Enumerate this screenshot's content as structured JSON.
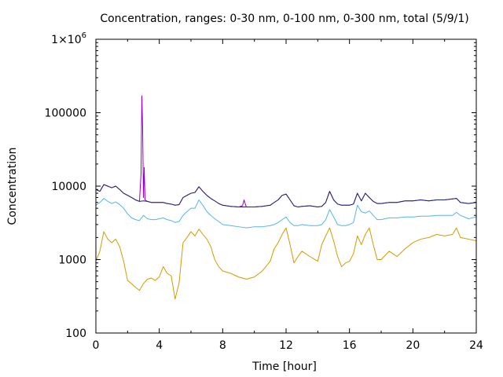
{
  "chart_data": {
    "type": "line",
    "title": "Concentration, ranges: 0-30 nm, 0-100 nm, 0-300 nm, total (5/9/1)",
    "xlabel": "Time [hour]",
    "ylabel": "Concentration",
    "xlim": [
      0,
      24
    ],
    "ylim": [
      100,
      1000000
    ],
    "yscale": "log",
    "grid": false,
    "x_ticks": [
      0,
      4,
      8,
      12,
      16,
      20,
      24
    ],
    "x_tick_labels": [
      "0",
      "4",
      "8",
      "12",
      "16",
      "20",
      "24"
    ],
    "y_ticks": [
      100,
      1000,
      10000,
      100000,
      1000000
    ],
    "y_tick_labels": [
      "100",
      "1000",
      "10000",
      "100000",
      "1×10^6"
    ],
    "series": [
      {
        "color": "#d49a00",
        "x": [
          0,
          0.25,
          0.5,
          0.75,
          1,
          1.25,
          1.5,
          1.75,
          2,
          2.25,
          2.5,
          2.75,
          3,
          3.25,
          3.5,
          3.75,
          4,
          4.25,
          4.5,
          4.75,
          5,
          5.25,
          5.5,
          5.75,
          6,
          6.25,
          6.5,
          6.75,
          7,
          7.25,
          7.5,
          7.75,
          8,
          8.5,
          9,
          9.5,
          10,
          10.5,
          11,
          11.25,
          11.5,
          11.75,
          12,
          12.25,
          12.5,
          12.75,
          13,
          13.5,
          14,
          14.25,
          14.5,
          14.75,
          15,
          15.25,
          15.5,
          15.75,
          16,
          16.25,
          16.5,
          16.75,
          17,
          17.25,
          17.5,
          17.75,
          18,
          18.5,
          19,
          19.5,
          20,
          20.5,
          21,
          21.5,
          22,
          22.5,
          22.75,
          23,
          23.5,
          24
        ],
        "y": [
          950,
          1300,
          2400,
          1900,
          1700,
          1900,
          1500,
          950,
          520,
          470,
          420,
          380,
          470,
          540,
          560,
          520,
          580,
          800,
          650,
          600,
          290,
          480,
          1700,
          2000,
          2400,
          2100,
          2600,
          2200,
          1900,
          1500,
          1000,
          800,
          700,
          650,
          580,
          540,
          580,
          700,
          950,
          1400,
          1700,
          2200,
          2700,
          1600,
          900,
          1100,
          1300,
          1100,
          950,
          1600,
          2100,
          2700,
          1800,
          1100,
          800,
          900,
          950,
          1200,
          2100,
          1600,
          2200,
          2700,
          1600,
          1000,
          1000,
          1300,
          1100,
          1400,
          1700,
          1900,
          2000,
          2200,
          2100,
          2200,
          2700,
          2000,
          1900,
          1800
        ]
      },
      {
        "color": "#56b4e9",
        "x": [
          0,
          0.25,
          0.5,
          0.75,
          1,
          1.25,
          1.5,
          1.75,
          2,
          2.25,
          2.5,
          2.75,
          3,
          3.25,
          3.5,
          3.75,
          4,
          4.25,
          4.5,
          4.75,
          5,
          5.25,
          5.5,
          5.75,
          6,
          6.25,
          6.5,
          6.75,
          7,
          7.25,
          7.5,
          7.75,
          8,
          8.5,
          9,
          9.5,
          10,
          10.5,
          11,
          11.25,
          11.5,
          11.75,
          12,
          12.25,
          12.5,
          12.75,
          13,
          13.5,
          14,
          14.25,
          14.5,
          14.75,
          15,
          15.25,
          15.5,
          15.75,
          16,
          16.25,
          16.5,
          16.75,
          17,
          17.25,
          17.5,
          17.75,
          18,
          18.5,
          19,
          19.5,
          20,
          20.5,
          21,
          21.5,
          22,
          22.5,
          22.75,
          23,
          23.5,
          24
        ],
        "y": [
          5500,
          6000,
          6800,
          6200,
          5800,
          6100,
          5600,
          5000,
          4200,
          3700,
          3500,
          3400,
          4000,
          3600,
          3500,
          3500,
          3600,
          3700,
          3500,
          3400,
          3200,
          3300,
          4000,
          4500,
          5000,
          5000,
          6500,
          5500,
          4500,
          4000,
          3600,
          3300,
          3000,
          2900,
          2800,
          2700,
          2800,
          2800,
          2900,
          3000,
          3200,
          3500,
          3800,
          3200,
          2900,
          2900,
          3000,
          2900,
          2900,
          3000,
          3500,
          4800,
          3800,
          3000,
          2900,
          2900,
          3000,
          3200,
          5500,
          4500,
          4300,
          4600,
          4000,
          3500,
          3500,
          3700,
          3700,
          3800,
          3800,
          3900,
          3900,
          4000,
          4000,
          4000,
          4400,
          4000,
          3600,
          3800
        ]
      },
      {
        "color": "#9400d3",
        "x": [
          0,
          0.25,
          0.5,
          0.75,
          1,
          1.25,
          1.5,
          1.75,
          2,
          2.25,
          2.5,
          2.75,
          2.85,
          2.9,
          2.95,
          3,
          3.05,
          3.1,
          3.25,
          3.5,
          3.75,
          4,
          4.25,
          4.5,
          4.75,
          5,
          5.25,
          5.5,
          5.75,
          6,
          6.25,
          6.5,
          6.75,
          7,
          7.25,
          7.5,
          7.75,
          8,
          8.5,
          9,
          9.25,
          9.35,
          9.45,
          9.5,
          10,
          10.5,
          11,
          11.25,
          11.5,
          11.75,
          12,
          12.25,
          12.5,
          12.75,
          13,
          13.5,
          14,
          14.25,
          14.5,
          14.75,
          15,
          15.25,
          15.5,
          15.75,
          16,
          16.25,
          16.5,
          16.75,
          17,
          17.25,
          17.5,
          17.75,
          18,
          18.5,
          19,
          19.5,
          20,
          20.5,
          21,
          21.5,
          22,
          22.5,
          22.75,
          23,
          23.5,
          24
        ],
        "y": [
          9000,
          8500,
          10500,
          10000,
          9500,
          10000,
          9000,
          8000,
          7500,
          7000,
          6500,
          6200,
          15000,
          170000,
          60000,
          7000,
          18000,
          6500,
          6200,
          6000,
          6000,
          6000,
          6000,
          5800,
          5700,
          5500,
          5600,
          7000,
          7500,
          8000,
          8200,
          9800,
          8500,
          7500,
          6800,
          6300,
          5800,
          5500,
          5300,
          5200,
          5400,
          6500,
          5500,
          5200,
          5200,
          5300,
          5500,
          6000,
          6500,
          7500,
          7800,
          6500,
          5400,
          5200,
          5300,
          5400,
          5200,
          5300,
          6000,
          8500,
          6500,
          5700,
          5500,
          5500,
          5500,
          5700,
          8000,
          6300,
          8000,
          7000,
          6200,
          5800,
          5800,
          6000,
          6000,
          6300,
          6300,
          6500,
          6300,
          6500,
          6500,
          6700,
          6800,
          6000,
          5800,
          6000
        ]
      },
      {
        "color": "#1a2a6c",
        "x": [
          0,
          0.25,
          0.5,
          0.75,
          1,
          1.25,
          1.5,
          1.75,
          2,
          2.25,
          2.5,
          2.75,
          3,
          3.25,
          3.5,
          3.75,
          4,
          4.25,
          4.5,
          4.75,
          5,
          5.25,
          5.5,
          5.75,
          6,
          6.25,
          6.5,
          6.75,
          7,
          7.25,
          7.5,
          7.75,
          8,
          8.5,
          9,
          9.5,
          10,
          10.5,
          11,
          11.25,
          11.5,
          11.75,
          12,
          12.25,
          12.5,
          12.75,
          13,
          13.5,
          14,
          14.25,
          14.5,
          14.75,
          15,
          15.25,
          15.5,
          15.75,
          16,
          16.25,
          16.5,
          16.75,
          17,
          17.25,
          17.5,
          17.75,
          18,
          18.5,
          19,
          19.5,
          20,
          20.5,
          21,
          21.5,
          22,
          22.5,
          22.75,
          23,
          23.5,
          24
        ],
        "y": [
          9000,
          8500,
          10500,
          10000,
          9500,
          10000,
          9000,
          8000,
          7500,
          7000,
          6500,
          6200,
          6300,
          6200,
          6000,
          6000,
          6000,
          6000,
          5800,
          5700,
          5500,
          5600,
          7000,
          7500,
          8000,
          8200,
          9800,
          8500,
          7500,
          6800,
          6300,
          5800,
          5500,
          5300,
          5200,
          5200,
          5200,
          5300,
          5500,
          6000,
          6500,
          7500,
          7800,
          6500,
          5400,
          5200,
          5300,
          5400,
          5200,
          5300,
          6000,
          8500,
          6500,
          5700,
          5500,
          5500,
          5500,
          5700,
          8000,
          6300,
          8000,
          7000,
          6200,
          5800,
          5800,
          6000,
          6000,
          6300,
          6300,
          6500,
          6300,
          6500,
          6500,
          6700,
          6800,
          6000,
          5800,
          6000
        ]
      }
    ]
  }
}
